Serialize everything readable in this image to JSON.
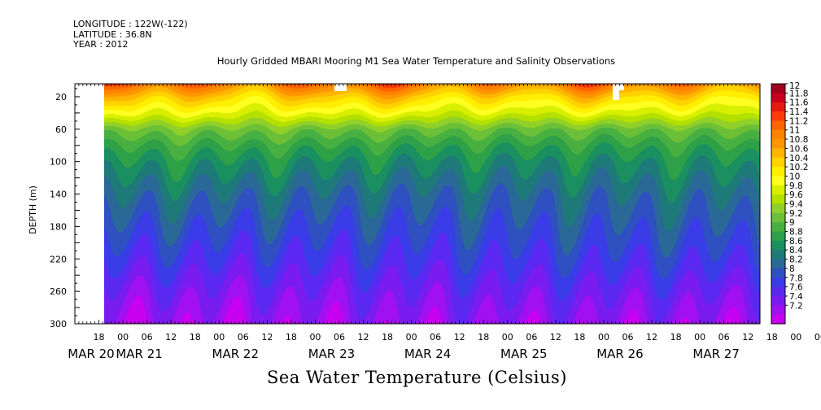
{
  "meta": {
    "longitude": "LONGITUDE : 122W(-122)",
    "latitude": "LATITUDE : 36.8N",
    "year": "YEAR : 2012"
  },
  "chart_data": {
    "type": "heatmap",
    "title": "Hourly Gridded MBARI Mooring M1 Sea Water Temperature and Salinity Observations",
    "xlabel": "Sea Water Temperature (Celsius)",
    "ylabel": "DEPTH (m)",
    "ylim": [
      300,
      4
    ],
    "y_ticks": [
      20,
      60,
      100,
      140,
      180,
      220,
      260,
      300
    ],
    "x_hour_ticks": [
      "18",
      "00",
      "06",
      "12",
      "18",
      "00",
      "06",
      "12",
      "18",
      "00",
      "06",
      "12",
      "18",
      "00",
      "06",
      "12",
      "18",
      "00",
      "06",
      "12",
      "18",
      "00",
      "06",
      "12",
      "18",
      "00",
      "06",
      "12",
      "18",
      "00",
      "06",
      "12"
    ],
    "x_day_labels": [
      "MAR 20",
      "MAR 21",
      "MAR 22",
      "MAR 23",
      "MAR 24",
      "MAR 25",
      "MAR 26",
      "MAR 27"
    ],
    "x_range": [
      "2012-03-20 12:00",
      "2012-03-27 15:00"
    ],
    "data_start": "2012-03-20 21:00",
    "colorbar": {
      "levels": [
        "12",
        "11.8",
        "11.6",
        "11.4",
        "11.2",
        "11",
        "10.8",
        "10.6",
        "10.4",
        "10.2",
        "10",
        "9.8",
        "9.6",
        "9.4",
        "9.2",
        "9",
        "8.8",
        "8.6",
        "8.4",
        "8.2",
        "8",
        "7.8",
        "7.6",
        "7.4",
        "7.2"
      ],
      "colors": [
        "#a0001e",
        "#c8001e",
        "#e61a10",
        "#fa3c0a",
        "#ff6400",
        "#ff8200",
        "#ff9600",
        "#ffb400",
        "#ffd200",
        "#ffee00",
        "#ffff20",
        "#d8f000",
        "#b4e000",
        "#90d028",
        "#6cc038",
        "#48b040",
        "#2ea048",
        "#1a9060",
        "#1e7a78",
        "#2a6898",
        "#2e50c0",
        "#3a3ce8",
        "#5a28f0",
        "#7a1cf0",
        "#a010f0",
        "#c800f0"
      ]
    },
    "profile_depth": [
      4,
      20,
      40,
      60,
      80,
      100,
      140,
      180,
      220,
      260,
      300
    ],
    "profile_temp": [
      11.1,
      10.5,
      9.95,
      9.3,
      8.95,
      8.7,
      8.35,
      8.1,
      7.85,
      7.55,
      7.3
    ]
  }
}
